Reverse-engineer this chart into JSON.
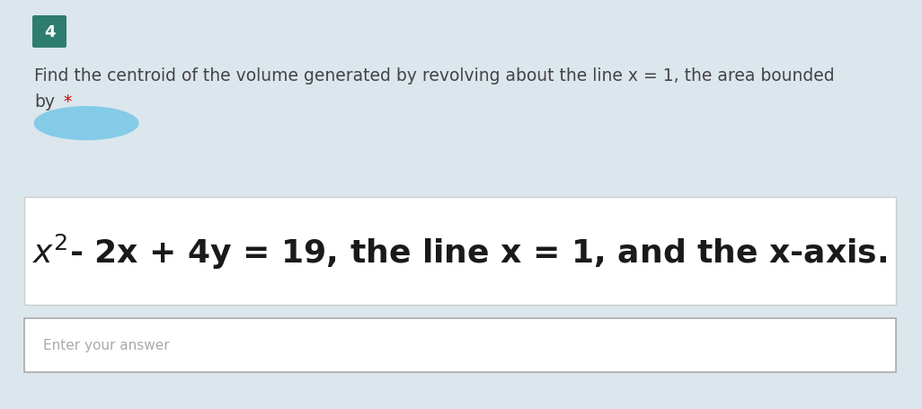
{
  "figure_bg": "#dce6ed",
  "number_label": "4",
  "number_bg": "#2e7d6e",
  "number_color": "#ffffff",
  "question_text_line1": "Find the centroid of the volume generated by revolving about the line x = 1, the area bounded",
  "question_text_line2": "by",
  "asterisk": "*",
  "blur_blob_color": "#7bc8e8",
  "formula_box_bg": "#ffffff",
  "formula_box_border": "#cccccc",
  "answer_box_bg": "#ffffff",
  "answer_box_border": "#aaaaaa",
  "answer_placeholder": "Enter your answer",
  "card_bg": "#dce6ed",
  "question_font_size": 13.5,
  "formula_font_size": 26,
  "answer_font_size": 11,
  "number_font_size": 13
}
